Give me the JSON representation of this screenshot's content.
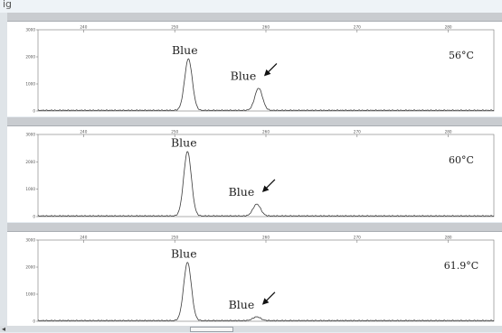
{
  "window": {
    "title_fragment": "ig"
  },
  "chart_data": [
    {
      "type": "line",
      "x_ticks": [
        240,
        250,
        260,
        270,
        280
      ],
      "y_ticks": [
        0,
        1000,
        2000,
        3000
      ],
      "xlim": [
        235,
        285
      ],
      "ylim": [
        0,
        3000
      ],
      "temperature": "56°C",
      "peaks": [
        {
          "label": "Blue",
          "x": 251.5,
          "height": 1900,
          "arrow": false
        },
        {
          "label": "Blue",
          "x": 259.2,
          "height": 820,
          "arrow": true
        }
      ]
    },
    {
      "type": "line",
      "x_ticks": [
        240,
        250,
        260,
        270,
        280
      ],
      "y_ticks": [
        0,
        1000,
        2000,
        3000
      ],
      "xlim": [
        235,
        285
      ],
      "ylim": [
        0,
        3000
      ],
      "temperature": "60°C",
      "peaks": [
        {
          "label": "Blue",
          "x": 251.4,
          "height": 2350,
          "arrow": false
        },
        {
          "label": "Blue",
          "x": 259.0,
          "height": 430,
          "arrow": true
        }
      ]
    },
    {
      "type": "line",
      "x_ticks": [
        240,
        250,
        260,
        270,
        280
      ],
      "y_ticks": [
        0,
        1000,
        2000,
        3000
      ],
      "xlim": [
        235,
        285
      ],
      "ylim": [
        0,
        3000
      ],
      "temperature": "61.9°C",
      "peaks": [
        {
          "label": "Blue",
          "x": 251.4,
          "height": 2150,
          "arrow": false
        },
        {
          "label": "Blue",
          "x": 259.0,
          "height": 140,
          "arrow": true
        }
      ]
    }
  ],
  "colors": {
    "trace": "#3a3a3a",
    "arrow": "#111111",
    "panel": "#ffffff",
    "frame": "#c9ccd0"
  }
}
